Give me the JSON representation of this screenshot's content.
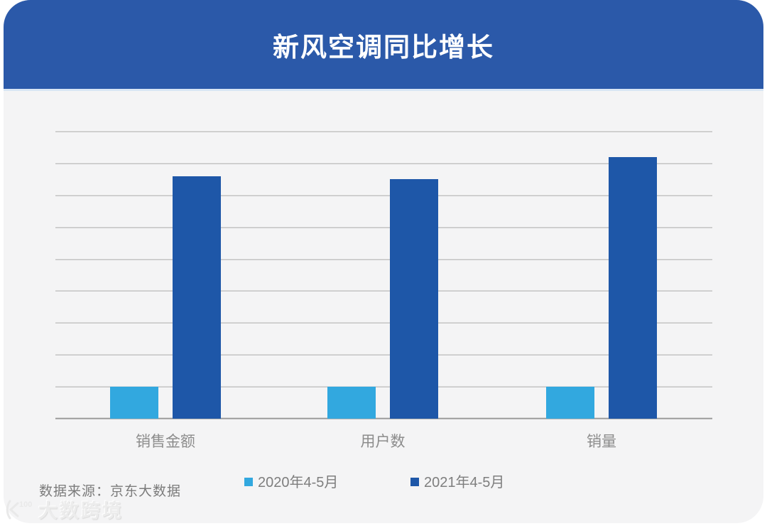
{
  "header": {
    "title": "新风空调同比增长"
  },
  "chart_data": {
    "type": "bar",
    "title": "新风空调同比增长",
    "categories": [
      "销售金额",
      "用户数",
      "销量"
    ],
    "series": [
      {
        "name": "2020年4-5月",
        "color": "#32A8DF",
        "values": [
          1,
          1,
          1
        ]
      },
      {
        "name": "2021年4-5月",
        "color": "#1E57A8",
        "values": [
          7.6,
          7.5,
          8.2
        ]
      }
    ],
    "xlabel": "",
    "ylabel": "",
    "ylim": [
      0,
      9
    ],
    "gridline_step": 1,
    "grid": true,
    "value_axis_labels_visible": false,
    "legend_position": "bottom"
  },
  "source": {
    "text": "数据来源：京东大数据"
  },
  "watermark": {
    "logo": "100",
    "text": "大数跨境"
  },
  "colors": {
    "header_bg": "#2B59A9",
    "body_bg": "#F4F4F5",
    "gridline": "#ABABAB",
    "axis_line": "#9C9C9C",
    "category_label": "#8C8C8C",
    "legend_text": "#7E7E7E",
    "source_text": "#7B7B7B"
  }
}
